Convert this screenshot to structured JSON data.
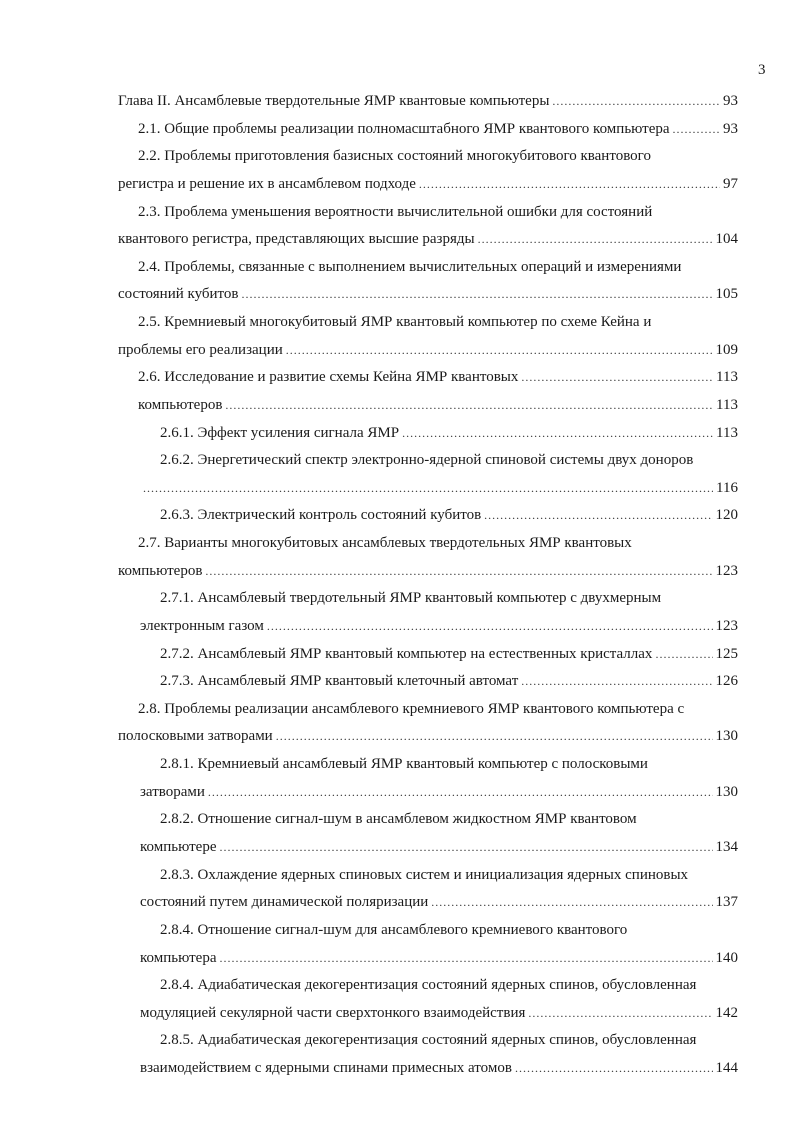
{
  "page_number": "3",
  "toc_lines": [
    {
      "kind": "chapter",
      "text": "Глава II. Ансамблевые твердотельные ЯМР квантовые компьютеры",
      "page": "93"
    },
    {
      "kind": "section",
      "text": "2.1.  Общие проблемы реализации полномасштабного ЯМР квантового компьютера",
      "page": "93"
    },
    {
      "kind": "section",
      "text": "2.2. Проблемы приготовления базисных состояний многокубитового квантового"
    },
    {
      "kind": "chapter",
      "text": "регистра и решение их в ансамблевом подходе",
      "page": "97"
    },
    {
      "kind": "section",
      "text": "2.3. Проблема уменьшения вероятности вычислительной ошибки для состояний"
    },
    {
      "kind": "chapter",
      "text": "квантового регистра, представляющих высшие разряды",
      "page": "104"
    },
    {
      "kind": "section",
      "text": "2.4. Проблемы, связанные с выполнением вычислительных операций и измерениями"
    },
    {
      "kind": "chapter",
      "text": "состояний кубитов",
      "page": "105"
    },
    {
      "kind": "section",
      "text": "2.5. Кремниевый многокубитовый ЯМР квантовый компьютер по схеме Кейна и"
    },
    {
      "kind": "chapter",
      "text": "проблемы его реализации",
      "page": "109"
    },
    {
      "kind": "section",
      "text": "2.6. Исследование и развитие схемы Кейна ЯМР квантовых",
      "page": "113"
    },
    {
      "kind": "section",
      "text": "компьютеров",
      "page": "113"
    },
    {
      "kind": "subsection",
      "text": "2.6.1. Эффект усиления сигнала ЯМР",
      "page": "113"
    },
    {
      "kind": "subsection",
      "text": "2.6.2. Энергетический спектр электронно-ядерной спиновой системы двух доноров"
    },
    {
      "kind": "continuation",
      "text": "",
      "page": "116"
    },
    {
      "kind": "subsection",
      "text": "2.6.3. Электрический контроль состояний кубитов",
      "page": "120"
    },
    {
      "kind": "section",
      "text": "2.7.  Варианты многокубитовых ансамблевых твердотельных ЯМР квантовых"
    },
    {
      "kind": "chapter",
      "text": "компьютеров",
      "page": "123"
    },
    {
      "kind": "subsection",
      "text": "2.7.1. Ансамблевый твердотельный ЯМР квантовый компьютер с двухмерным"
    },
    {
      "kind": "continuation",
      "text": "электронным газом",
      "page": "123"
    },
    {
      "kind": "subsection",
      "text": "2.7.2. Ансамблевый ЯМР квантовый компьютер на естественных кристаллах",
      "page": "125"
    },
    {
      "kind": "subsection",
      "text": "2.7.3. Ансамблевый ЯМР квантовый клеточный автомат",
      "page": "126"
    },
    {
      "kind": "section",
      "text": "2.8. Проблемы реализации ансамблевого кремниевого ЯМР квантового компьютера с"
    },
    {
      "kind": "chapter",
      "text": "полосковыми затворами",
      "page": "130"
    },
    {
      "kind": "subsection",
      "text": "2.8.1. Кремниевый ансамблевый ЯМР квантовый компьютер с полосковыми"
    },
    {
      "kind": "continuation",
      "text": "затворами",
      "page": "130"
    },
    {
      "kind": "subsection",
      "text": "2.8.2. Отношение сигнал-шум в ансамблевом жидкостном ЯМР квантовом"
    },
    {
      "kind": "continuation",
      "text": "компьютере",
      "page": "134"
    },
    {
      "kind": "subsection",
      "text": "2.8.3. Охлаждение ядерных спиновых систем и инициализация ядерных спиновых"
    },
    {
      "kind": "continuation",
      "text": "состояний путем динамической поляризации",
      "page": "137"
    },
    {
      "kind": "subsection",
      "text": "2.8.4. Отношение сигнал-шум для ансамблевого кремниевого квантового"
    },
    {
      "kind": "continuation",
      "text": "компьютера",
      "page": "140"
    },
    {
      "kind": "subsection",
      "text": "2.8.4. Адиабатическая декогерентизация состояний ядерных спинов, обусловленная"
    },
    {
      "kind": "continuation",
      "text": "модуляцией секулярной части сверхтонкого взаимодействия",
      "page": "142"
    },
    {
      "kind": "subsection",
      "text": "2.8.5. Адиабатическая декогерентизация состояний ядерных спинов, обусловленная"
    },
    {
      "kind": "continuation",
      "text": "взаимодействием с ядерными спинами примесных атомов",
      "page": "144"
    }
  ]
}
